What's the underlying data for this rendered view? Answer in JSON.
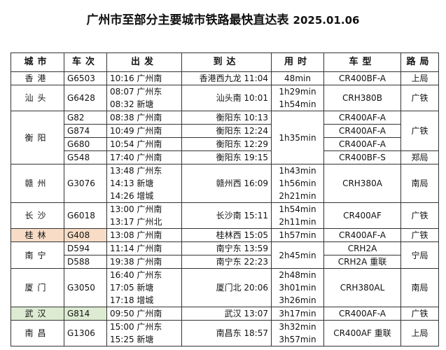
{
  "title": {
    "text": "广州市至部分主要城市铁路最快直达表",
    "date": "2025.01.06"
  },
  "headers": [
    "城市",
    "车次",
    "出发",
    "到达",
    "用时",
    "车型",
    "路局"
  ],
  "colors": {
    "guilin_highlight": "#f8dcc6",
    "wuhan_highlight": "#dcebd2"
  },
  "rows": [
    {
      "cells": [
        {
          "k": "city",
          "lines": [
            "香港"
          ]
        },
        {
          "k": "train",
          "lines": [
            "G6503"
          ]
        },
        {
          "k": "dep",
          "lines": [
            "10:16 广州南"
          ]
        },
        {
          "k": "arr",
          "lines": [
            "香港西九龙 11:04"
          ]
        },
        {
          "k": "dur",
          "lines": [
            "48min"
          ]
        },
        {
          "k": "type",
          "lines": [
            "CR400BF-A"
          ]
        },
        {
          "k": "bureau",
          "lines": [
            "上局"
          ]
        }
      ]
    },
    {
      "cells": [
        {
          "k": "city",
          "lines": [
            "汕头"
          ]
        },
        {
          "k": "train",
          "lines": [
            "G6428"
          ]
        },
        {
          "k": "dep",
          "lines": [
            "08:07 广州东",
            "08:32 新塘"
          ]
        },
        {
          "k": "arr",
          "lines": [
            "汕头南 10:01"
          ]
        },
        {
          "k": "dur",
          "lines": [
            "1h29min",
            "1h54min"
          ]
        },
        {
          "k": "type",
          "lines": [
            "CRH380B"
          ]
        },
        {
          "k": "bureau",
          "lines": [
            "广铁"
          ]
        }
      ]
    },
    {
      "cells": [
        {
          "k": "city",
          "lines": [
            "衡阳"
          ],
          "span": 4
        },
        {
          "k": "train",
          "lines": [
            "G82"
          ]
        },
        {
          "k": "dep",
          "lines": [
            "08:38 广州南"
          ]
        },
        {
          "k": "arr",
          "lines": [
            "衡阳东 10:13"
          ]
        },
        {
          "k": "dur",
          "lines": [
            "1h35min"
          ],
          "span": 4
        },
        {
          "k": "type",
          "lines": [
            "CR400AF-A"
          ]
        },
        {
          "k": "bureau",
          "lines": [
            "广铁"
          ],
          "span": 3
        }
      ]
    },
    {
      "sub": true,
      "cells": [
        {
          "k": "train",
          "lines": [
            "G874"
          ]
        },
        {
          "k": "dep",
          "lines": [
            "10:49 广州南"
          ]
        },
        {
          "k": "arr",
          "lines": [
            "衡阳东 12:24"
          ]
        },
        {
          "k": "type",
          "lines": [
            "CR400AF-A"
          ]
        }
      ]
    },
    {
      "sub": true,
      "cells": [
        {
          "k": "train",
          "lines": [
            "G680"
          ]
        },
        {
          "k": "dep",
          "lines": [
            "10:54 广州南"
          ]
        },
        {
          "k": "arr",
          "lines": [
            "衡阳东 12:29"
          ]
        },
        {
          "k": "type",
          "lines": [
            "CR400AF-A"
          ]
        }
      ]
    },
    {
      "sub": true,
      "cells": [
        {
          "k": "train",
          "lines": [
            "G548"
          ]
        },
        {
          "k": "dep",
          "lines": [
            "17:40 广州南"
          ]
        },
        {
          "k": "arr",
          "lines": [
            "衡阳东 19:15"
          ]
        },
        {
          "k": "type",
          "lines": [
            "CR400BF-S"
          ]
        },
        {
          "k": "bureau",
          "lines": [
            "郑局"
          ]
        }
      ]
    },
    {
      "cells": [
        {
          "k": "city",
          "lines": [
            "赣州"
          ]
        },
        {
          "k": "train",
          "lines": [
            "G3076"
          ]
        },
        {
          "k": "dep",
          "lines": [
            "13:48 广州东",
            "14:13 新塘",
            "14:26 增城"
          ]
        },
        {
          "k": "arr",
          "lines": [
            "赣州西 16:09"
          ]
        },
        {
          "k": "dur",
          "lines": [
            "1h43min",
            "1h56min",
            "2h21min"
          ]
        },
        {
          "k": "type",
          "lines": [
            "CRH380A"
          ]
        },
        {
          "k": "bureau",
          "lines": [
            "南局"
          ]
        }
      ]
    },
    {
      "cells": [
        {
          "k": "city",
          "lines": [
            "长沙"
          ]
        },
        {
          "k": "train",
          "lines": [
            "G6018"
          ]
        },
        {
          "k": "dep",
          "lines": [
            "13:00 广州南",
            "13:17 广州北"
          ]
        },
        {
          "k": "arr",
          "lines": [
            "长沙南 15:11"
          ]
        },
        {
          "k": "dur",
          "lines": [
            "1h54min",
            "2h11min"
          ]
        },
        {
          "k": "type",
          "lines": [
            "CR400AF"
          ]
        },
        {
          "k": "bureau",
          "lines": [
            "广铁"
          ]
        }
      ]
    },
    {
      "cells": [
        {
          "k": "city",
          "lines": [
            "桂林"
          ],
          "bg": "#f8dcc6"
        },
        {
          "k": "train",
          "lines": [
            "G408"
          ],
          "bg": "#f8dcc6"
        },
        {
          "k": "dep",
          "lines": [
            "13:08 广州南"
          ]
        },
        {
          "k": "arr",
          "lines": [
            "桂林西 15:05"
          ]
        },
        {
          "k": "dur",
          "lines": [
            "1h57min"
          ]
        },
        {
          "k": "type",
          "lines": [
            "CR400AF-A"
          ]
        },
        {
          "k": "bureau",
          "lines": [
            "广铁"
          ]
        }
      ]
    },
    {
      "cells": [
        {
          "k": "city",
          "lines": [
            "南宁"
          ],
          "span": 2
        },
        {
          "k": "train",
          "lines": [
            "D594"
          ]
        },
        {
          "k": "dep",
          "lines": [
            "11:14 广州南"
          ]
        },
        {
          "k": "arr",
          "lines": [
            "南宁东 13:59"
          ]
        },
        {
          "k": "dur",
          "lines": [
            "2h45min"
          ],
          "span": 2
        },
        {
          "k": "type",
          "lines": [
            "CRH2A"
          ]
        },
        {
          "k": "bureau",
          "lines": [
            "宁局"
          ],
          "span": 2
        }
      ]
    },
    {
      "sub": true,
      "cells": [
        {
          "k": "train",
          "lines": [
            "D588"
          ]
        },
        {
          "k": "dep",
          "lines": [
            "19:38 广州南"
          ]
        },
        {
          "k": "arr",
          "lines": [
            "南宁东 22:23"
          ]
        },
        {
          "k": "type",
          "lines": [
            "CRH2A 重联"
          ]
        }
      ]
    },
    {
      "cells": [
        {
          "k": "city",
          "lines": [
            "厦门"
          ]
        },
        {
          "k": "train",
          "lines": [
            "G3050"
          ]
        },
        {
          "k": "dep",
          "lines": [
            "16:40 广州东",
            "17:05 新塘",
            "17:18 增城"
          ]
        },
        {
          "k": "arr",
          "lines": [
            "厦门北 20:06"
          ]
        },
        {
          "k": "dur",
          "lines": [
            "2h48min",
            "3h01min",
            "3h26min"
          ]
        },
        {
          "k": "type",
          "lines": [
            "CRH380AL"
          ]
        },
        {
          "k": "bureau",
          "lines": [
            "南局"
          ]
        }
      ]
    },
    {
      "cells": [
        {
          "k": "city",
          "lines": [
            "武汉"
          ],
          "bg": "#dcebd2"
        },
        {
          "k": "train",
          "lines": [
            "G814"
          ],
          "bg": "#dcebd2"
        },
        {
          "k": "dep",
          "lines": [
            "09:50 广州南"
          ]
        },
        {
          "k": "arr",
          "lines": [
            "武汉 13:07"
          ]
        },
        {
          "k": "dur",
          "lines": [
            "3h17min"
          ]
        },
        {
          "k": "type",
          "lines": [
            "CR400AF-A"
          ]
        },
        {
          "k": "bureau",
          "lines": [
            "广铁"
          ]
        }
      ]
    },
    {
      "cells": [
        {
          "k": "city",
          "lines": [
            "南昌"
          ]
        },
        {
          "k": "train",
          "lines": [
            "G1306"
          ]
        },
        {
          "k": "dep",
          "lines": [
            "15:00 广州东",
            "15:25 新塘"
          ]
        },
        {
          "k": "arr",
          "lines": [
            "南昌东 18:57"
          ]
        },
        {
          "k": "dur",
          "lines": [
            "3h32min",
            "3h57min"
          ]
        },
        {
          "k": "type",
          "lines": [
            "CR400AF 重联"
          ]
        },
        {
          "k": "bureau",
          "lines": [
            "上局"
          ]
        }
      ]
    }
  ]
}
